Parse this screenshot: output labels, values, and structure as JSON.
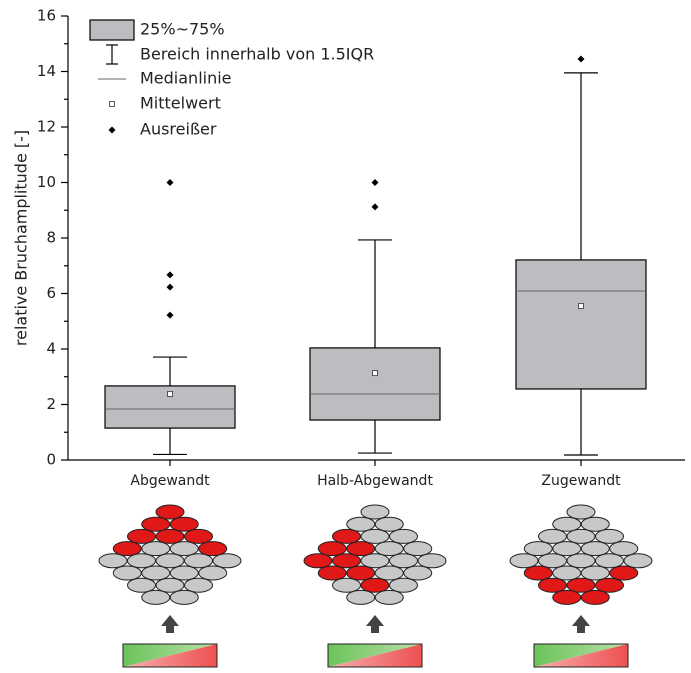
{
  "chart_data": {
    "type": "box",
    "y_label": "relative Bruchamplitude [-]",
    "categories": [
      "Abgewandt",
      "Halb-Abgewandt",
      "Zugewandt"
    ],
    "legend": [
      "25%~75%",
      "Bereich innerhalb von 1.5IQR",
      "Medianlinie",
      "Mittelwert",
      "Ausreißer"
    ],
    "color": "#bcbdc0",
    "boxes": [
      {
        "whisker_low": 0.2,
        "q1": 1.15,
        "median": 1.84,
        "q3": 2.67,
        "whisker_high": 3.71,
        "mean": 2.38,
        "outliers": [
          5.22,
          6.23,
          6.67,
          10.0
        ]
      },
      {
        "whisker_low": 0.25,
        "q1": 1.44,
        "median": 2.38,
        "q3": 4.04,
        "whisker_high": 7.93,
        "mean": 3.13,
        "outliers": [
          9.12,
          10.0
        ]
      },
      {
        "whisker_low": 0.18,
        "q1": 2.56,
        "median": 6.09,
        "q3": 7.21,
        "whisker_high": 13.95,
        "mean": 5.55,
        "outliers": [
          14.45
        ]
      }
    ],
    "ylim": [
      0,
      16
    ],
    "yticks": [
      0,
      2,
      4,
      6,
      8,
      10,
      12,
      14,
      16
    ],
    "yminorticks": [
      1,
      3,
      5,
      7,
      9,
      11,
      13,
      15
    ]
  }
}
